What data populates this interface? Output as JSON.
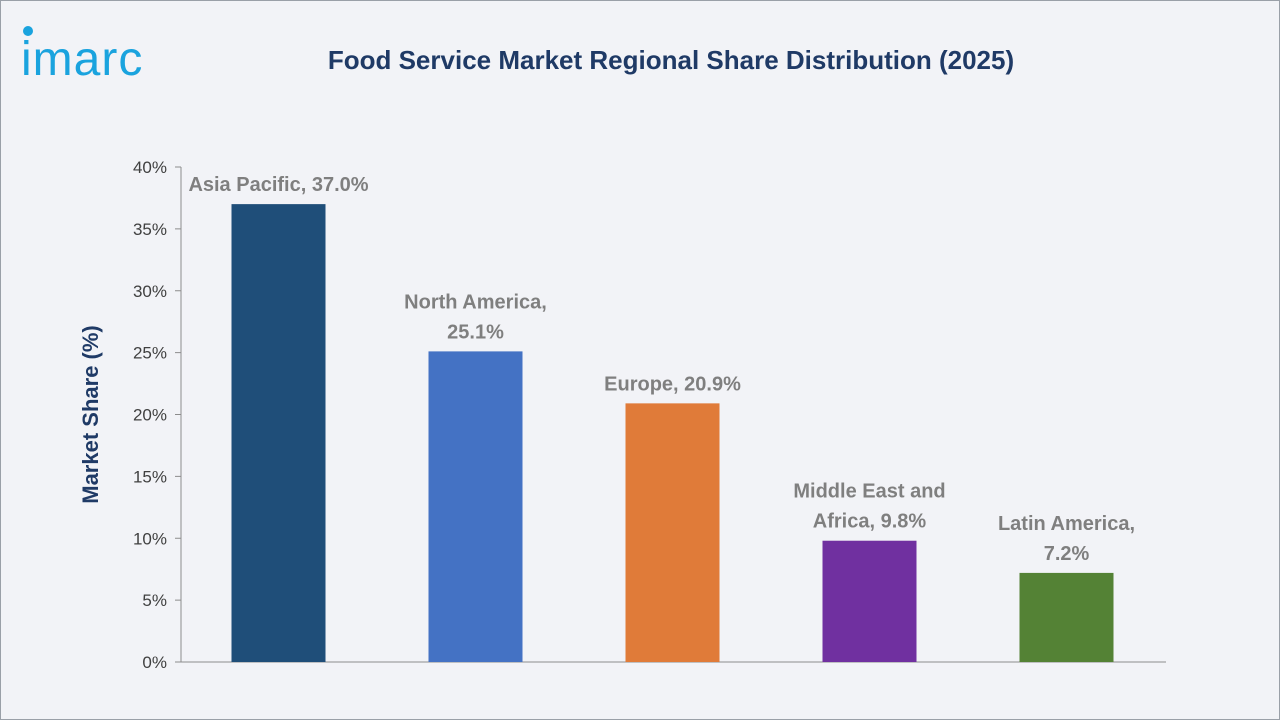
{
  "brand": {
    "logo_text": "imarc",
    "logo_color": "#1aa3de"
  },
  "chart_data": {
    "type": "bar",
    "title": "Food Service Market Regional Share Distribution (2025)",
    "ylabel": "Market Share (%)",
    "xlabel": "",
    "ylim": [
      0,
      40
    ],
    "yticks": [
      "0%",
      "5%",
      "10%",
      "15%",
      "20%",
      "25%",
      "30%",
      "35%",
      "40%"
    ],
    "grid": false,
    "categories": [
      "Asia Pacific",
      "North America",
      "Europe",
      "Middle East and Africa",
      "Latin America"
    ],
    "values": [
      37.0,
      25.1,
      20.9,
      9.8,
      7.2
    ],
    "colors": [
      "#1f4e79",
      "#4472c4",
      "#e07b39",
      "#7030a0",
      "#548235"
    ],
    "data_labels": [
      [
        "Asia Pacific, 37.0%"
      ],
      [
        "North America,",
        "25.1%"
      ],
      [
        "Europe, 20.9%"
      ],
      [
        "Middle East and",
        "Africa, 9.8%"
      ],
      [
        "Latin America,",
        "7.2%"
      ]
    ]
  }
}
